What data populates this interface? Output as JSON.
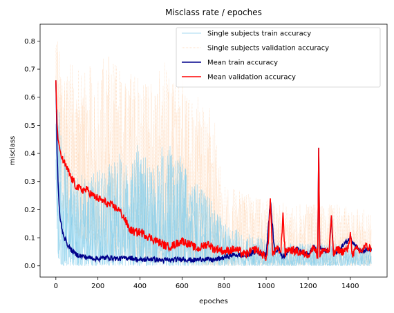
{
  "chart_data": {
    "type": "line",
    "title": "Misclass rate / epoches",
    "xlabel": "epoches",
    "ylabel": "misclass",
    "xlim": [
      -75,
      1575
    ],
    "ylim": [
      -0.04,
      0.86
    ],
    "xticks": [
      0,
      200,
      400,
      600,
      800,
      1000,
      1200,
      1400
    ],
    "yticks": [
      0.0,
      0.1,
      0.2,
      0.3,
      0.4,
      0.5,
      0.6,
      0.7,
      0.8
    ],
    "tick_labels_x": [
      "0",
      "200",
      "400",
      "600",
      "800",
      "1000",
      "1200",
      "1400"
    ],
    "tick_labels_y": [
      "0.0",
      "0.1",
      "0.2",
      "0.3",
      "0.4",
      "0.5",
      "0.6",
      "0.7",
      "0.8"
    ],
    "grid": false,
    "legend_position": "top-right",
    "series": [
      {
        "name": "Single subjects train accuracy",
        "color": "#87ceeb",
        "style": "thin-solid",
        "envelope_x": [
          0,
          10,
          30,
          60,
          100,
          150,
          200,
          250,
          300,
          350,
          400,
          450,
          500,
          550,
          600,
          650,
          700,
          750,
          800,
          900,
          1000,
          1100,
          1200,
          1300,
          1400,
          1500
        ],
        "envelope_upper": [
          0.78,
          0.62,
          0.45,
          0.38,
          0.33,
          0.32,
          0.34,
          0.36,
          0.4,
          0.38,
          0.45,
          0.35,
          0.42,
          0.46,
          0.4,
          0.3,
          0.28,
          0.22,
          0.15,
          0.12,
          0.1,
          0.08,
          0.08,
          0.08,
          0.08,
          0.07
        ],
        "envelope_lower": [
          0.3,
          0.02,
          0.0,
          0.0,
          0.0,
          0.0,
          0.0,
          0.0,
          0.0,
          0.0,
          0.0,
          0.0,
          0.0,
          0.0,
          0.0,
          0.0,
          0.0,
          0.0,
          0.0,
          0.0,
          0.0,
          0.0,
          0.0,
          0.0,
          0.0,
          0.0
        ]
      },
      {
        "name": "Single subjects validation accuracy",
        "color": "#ffd4b0",
        "style": "thin-dotted",
        "envelope_x": [
          0,
          10,
          30,
          60,
          100,
          150,
          200,
          250,
          300,
          350,
          400,
          450,
          500,
          550,
          600,
          650,
          700,
          750,
          800,
          900,
          1000,
          1100,
          1200,
          1300,
          1400,
          1500
        ],
        "envelope_upper": [
          0.82,
          0.8,
          0.76,
          0.74,
          0.73,
          0.71,
          0.72,
          0.76,
          0.7,
          0.68,
          0.72,
          0.66,
          0.75,
          0.68,
          0.7,
          0.6,
          0.62,
          0.55,
          0.3,
          0.26,
          0.24,
          0.22,
          0.22,
          0.22,
          0.22,
          0.2
        ],
        "envelope_lower": [
          0.55,
          0.3,
          0.2,
          0.15,
          0.1,
          0.08,
          0.05,
          0.04,
          0.03,
          0.02,
          0.02,
          0.01,
          0.01,
          0.01,
          0.01,
          0.0,
          0.0,
          0.0,
          0.0,
          0.0,
          0.0,
          0.0,
          0.0,
          0.0,
          0.0,
          0.0
        ]
      },
      {
        "name": "Mean train accuracy",
        "color": "#00008b",
        "style": "solid",
        "x": [
          0,
          3,
          6,
          10,
          15,
          20,
          30,
          40,
          50,
          60,
          80,
          100,
          120,
          150,
          200,
          250,
          300,
          350,
          400,
          450,
          500,
          550,
          600,
          650,
          700,
          750,
          800,
          850,
          900,
          950,
          1000,
          1020,
          1040,
          1060,
          1080,
          1100,
          1150,
          1200,
          1230,
          1245,
          1250,
          1255,
          1300,
          1310,
          1320,
          1350,
          1400,
          1450,
          1500
        ],
        "y": [
          0.66,
          0.55,
          0.4,
          0.3,
          0.22,
          0.17,
          0.13,
          0.1,
          0.085,
          0.07,
          0.05,
          0.04,
          0.035,
          0.03,
          0.025,
          0.03,
          0.025,
          0.03,
          0.02,
          0.025,
          0.02,
          0.02,
          0.025,
          0.02,
          0.025,
          0.02,
          0.03,
          0.04,
          0.035,
          0.05,
          0.04,
          0.23,
          0.05,
          0.06,
          0.03,
          0.05,
          0.06,
          0.04,
          0.07,
          0.03,
          0.42,
          0.06,
          0.05,
          0.18,
          0.04,
          0.06,
          0.1,
          0.05,
          0.06
        ]
      },
      {
        "name": "Mean validation accuracy",
        "color": "#ff0000",
        "style": "solid",
        "x": [
          0,
          3,
          6,
          10,
          20,
          30,
          50,
          75,
          100,
          125,
          150,
          175,
          200,
          225,
          250,
          275,
          300,
          325,
          350,
          375,
          400,
          425,
          450,
          475,
          500,
          525,
          550,
          575,
          600,
          625,
          650,
          675,
          700,
          725,
          750,
          775,
          800,
          850,
          900,
          950,
          1000,
          1010,
          1020,
          1030,
          1050,
          1070,
          1080,
          1090,
          1100,
          1150,
          1200,
          1230,
          1245,
          1250,
          1255,
          1270,
          1300,
          1310,
          1320,
          1340,
          1360,
          1390,
          1400,
          1410,
          1430,
          1450,
          1470,
          1500
        ],
        "y": [
          0.66,
          0.58,
          0.5,
          0.45,
          0.41,
          0.38,
          0.35,
          0.31,
          0.28,
          0.27,
          0.27,
          0.25,
          0.24,
          0.23,
          0.22,
          0.21,
          0.2,
          0.17,
          0.13,
          0.12,
          0.12,
          0.11,
          0.1,
          0.09,
          0.08,
          0.07,
          0.07,
          0.08,
          0.09,
          0.08,
          0.07,
          0.06,
          0.07,
          0.08,
          0.06,
          0.06,
          0.05,
          0.06,
          0.04,
          0.06,
          0.03,
          0.08,
          0.24,
          0.04,
          0.06,
          0.05,
          0.19,
          0.04,
          0.06,
          0.05,
          0.04,
          0.07,
          0.03,
          0.42,
          0.03,
          0.06,
          0.05,
          0.18,
          0.04,
          0.06,
          0.05,
          0.06,
          0.12,
          0.04,
          0.06,
          0.05,
          0.07,
          0.06
        ]
      }
    ]
  }
}
